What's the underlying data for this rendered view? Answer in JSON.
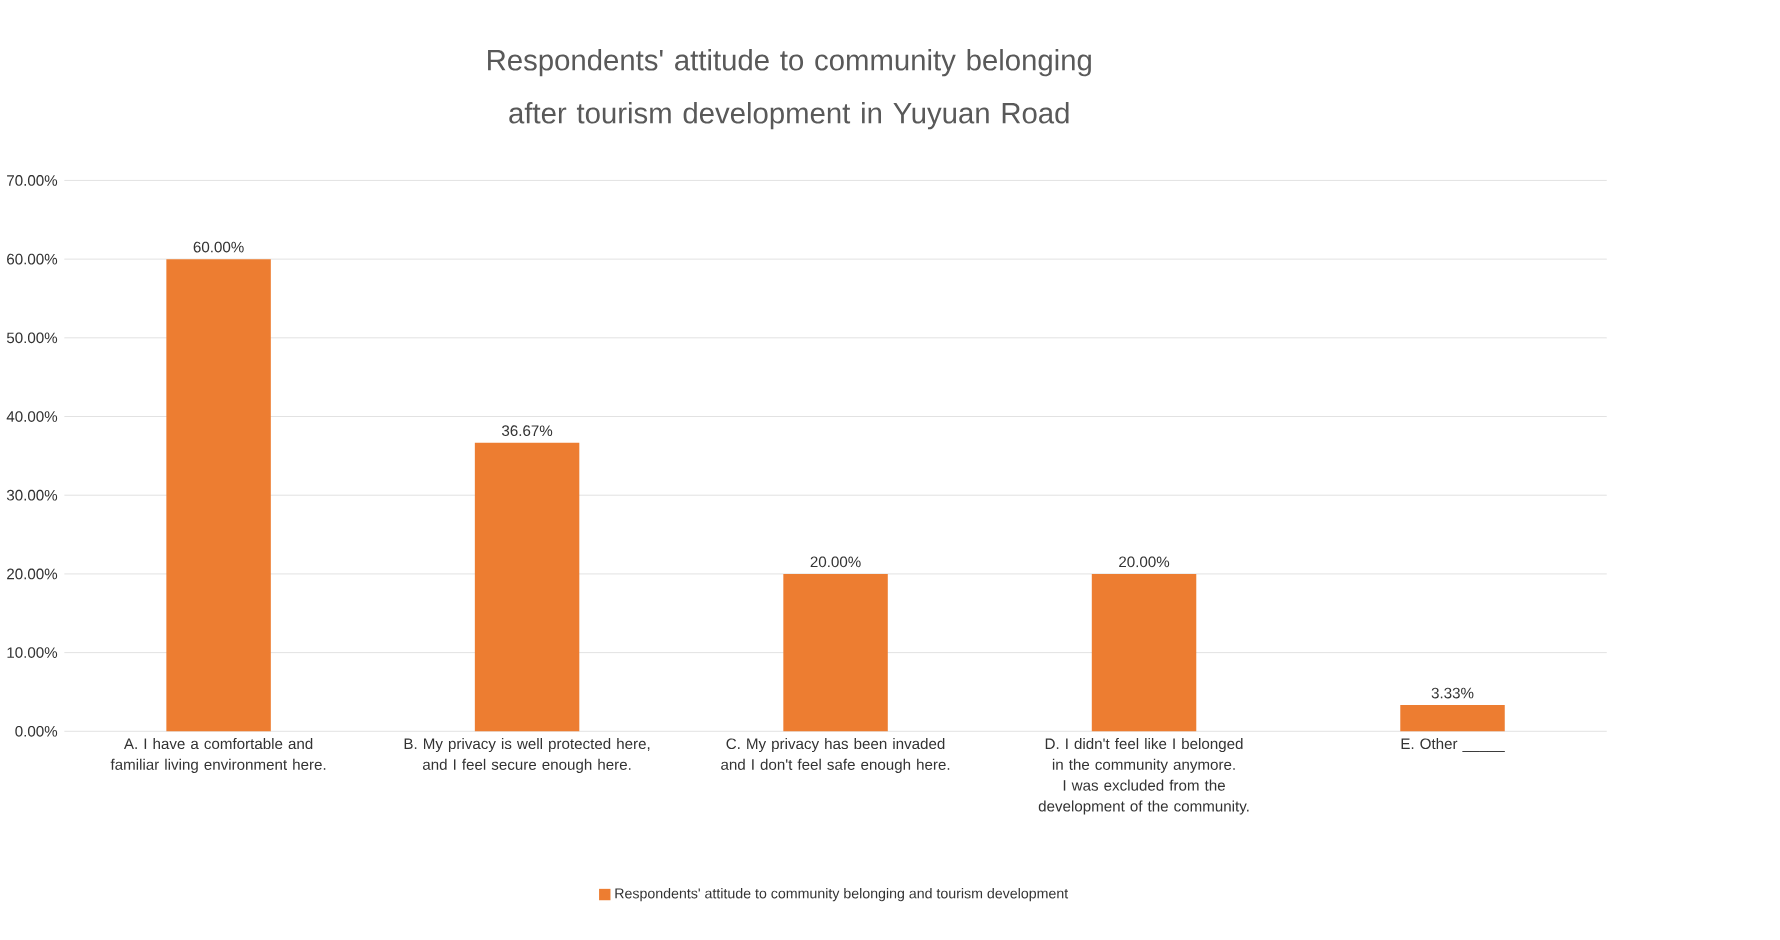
{
  "chart_data": {
    "type": "bar",
    "title": "Respondents' attitude to community belonging after tourism development in Yuyuan Road",
    "categories": [
      "A. I have a comfortable and familiar living environment here.",
      "B. My privacy is well protected here, and I feel secure enough here.",
      "C. My privacy has been invaded and I don't feel safe enough here.",
      "D. I didn't feel like I belonged in the community anymore. I was excluded from the development of the community.",
      "E. Other _____"
    ],
    "series": [
      {
        "name": "Respondents' attitude to community belonging and tourism development",
        "color": "#ed7d31",
        "values": [
          60,
          36.67,
          20,
          20,
          3.33
        ],
        "value_labels": [
          "60.00%",
          "36.67%",
          "20.00%",
          "20.00%",
          "3.33%"
        ]
      }
    ],
    "ylim": [
      0,
      70
    ],
    "yticks": [
      {
        "value": 0,
        "label": "0.00%"
      },
      {
        "value": 10,
        "label": "10.00%"
      },
      {
        "value": 20,
        "label": "20.00%"
      },
      {
        "value": 30,
        "label": "30.00%"
      },
      {
        "value": 40,
        "label": "40.00%"
      },
      {
        "value": 50,
        "label": "50.00%"
      },
      {
        "value": 60,
        "label": "60.00%"
      },
      {
        "value": 70,
        "label": "70.00%"
      }
    ],
    "grid": "y",
    "legend": "bottom"
  }
}
